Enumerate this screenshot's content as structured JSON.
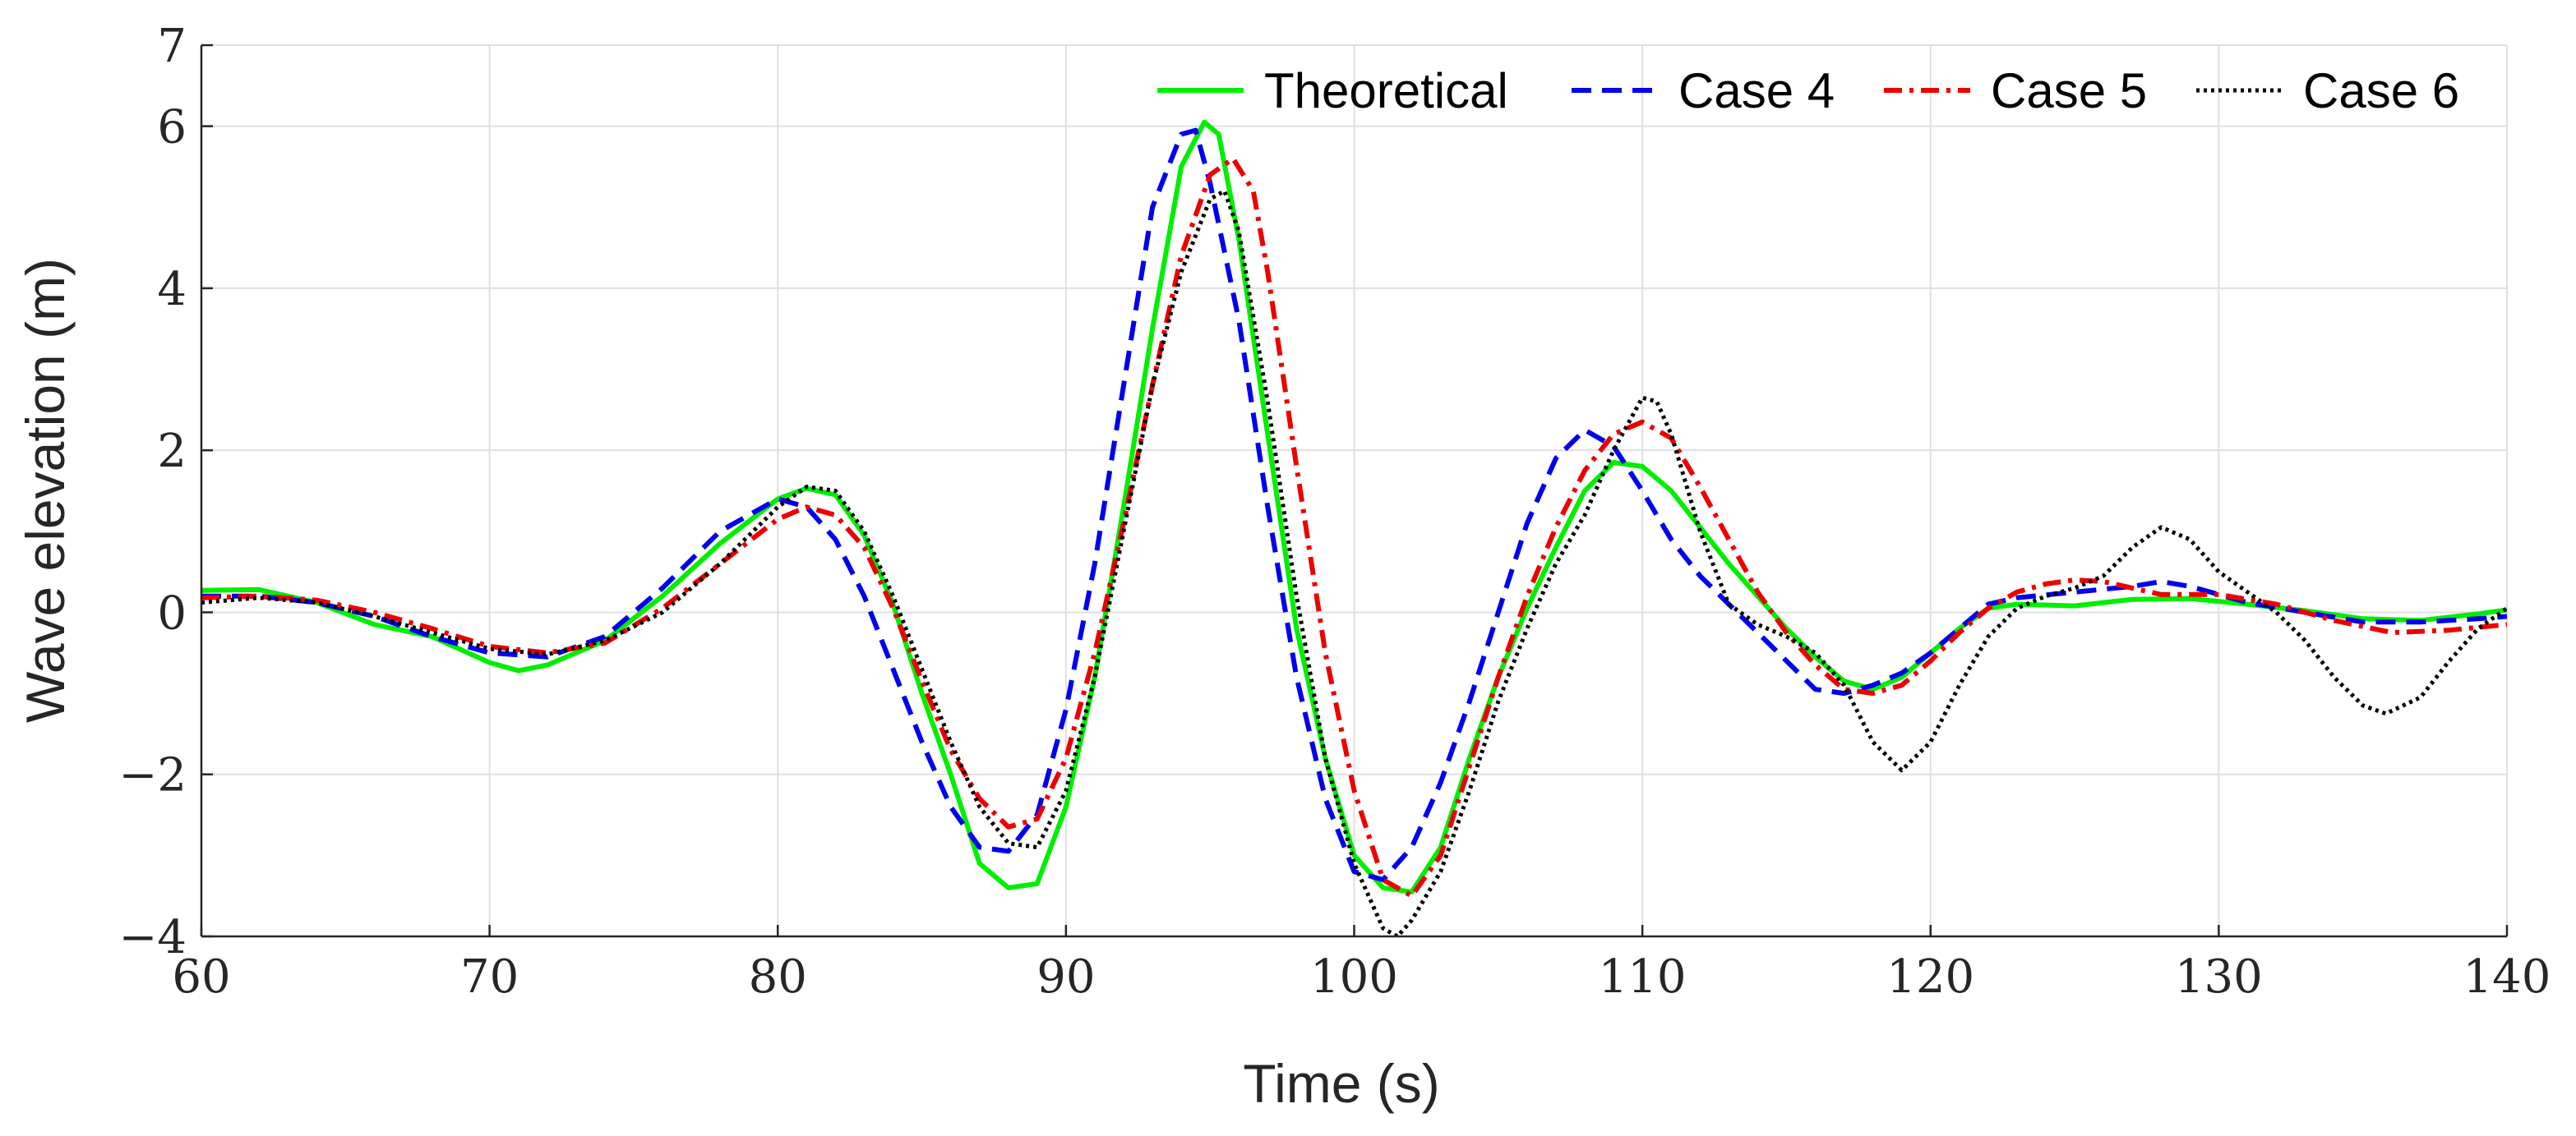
{
  "chart_data": {
    "type": "line",
    "title": "",
    "xlabel": "Time (s)",
    "ylabel": "Wave elevation (m)",
    "xlim": [
      60,
      140
    ],
    "ylim": [
      -4,
      7
    ],
    "xticks": [
      60,
      70,
      80,
      90,
      100,
      110,
      120,
      130,
      140
    ],
    "yticks": [
      -4,
      -2,
      0,
      2,
      4,
      6,
      7
    ],
    "xtick_labels": [
      "60",
      "70",
      "80",
      "90",
      "100",
      "110",
      "120",
      "130",
      "140"
    ],
    "ytick_labels": [
      "−4",
      "−2",
      "0",
      "2",
      "4",
      "6",
      "7"
    ],
    "grid": true,
    "legend_position": "top-right",
    "series": [
      {
        "name": "Theoretical",
        "color": "#00ee00",
        "style": "solid",
        "points": [
          [
            60,
            0.27
          ],
          [
            62,
            0.28
          ],
          [
            64,
            0.12
          ],
          [
            66,
            -0.15
          ],
          [
            68,
            -0.3
          ],
          [
            70,
            -0.62
          ],
          [
            71,
            -0.72
          ],
          [
            72,
            -0.65
          ],
          [
            74,
            -0.35
          ],
          [
            76,
            0.2
          ],
          [
            78,
            0.85
          ],
          [
            80,
            1.4
          ],
          [
            81,
            1.53
          ],
          [
            82,
            1.45
          ],
          [
            83,
            0.95
          ],
          [
            84,
            0.1
          ],
          [
            85,
            -1.0
          ],
          [
            86,
            -2.0
          ],
          [
            87,
            -3.1
          ],
          [
            88,
            -3.4
          ],
          [
            89,
            -3.35
          ],
          [
            90,
            -2.4
          ],
          [
            91,
            -0.8
          ],
          [
            92,
            1.3
          ],
          [
            93,
            3.5
          ],
          [
            94,
            5.5
          ],
          [
            94.8,
            6.05
          ],
          [
            95.3,
            5.9
          ],
          [
            96,
            4.6
          ],
          [
            97,
            2.2
          ],
          [
            98,
            -0.2
          ],
          [
            99,
            -1.8
          ],
          [
            100,
            -3.0
          ],
          [
            101,
            -3.4
          ],
          [
            102,
            -3.45
          ],
          [
            103,
            -2.9
          ],
          [
            104,
            -1.8
          ],
          [
            105,
            -0.8
          ],
          [
            106,
            0.05
          ],
          [
            107,
            0.8
          ],
          [
            108,
            1.5
          ],
          [
            109,
            1.85
          ],
          [
            110,
            1.8
          ],
          [
            111,
            1.5
          ],
          [
            112,
            1.05
          ],
          [
            113,
            0.6
          ],
          [
            114,
            0.2
          ],
          [
            115,
            -0.2
          ],
          [
            116,
            -0.55
          ],
          [
            117,
            -0.85
          ],
          [
            118,
            -0.95
          ],
          [
            119,
            -0.8
          ],
          [
            120,
            -0.5
          ],
          [
            121,
            -0.2
          ],
          [
            122,
            0.05
          ],
          [
            123,
            0.1
          ],
          [
            125,
            0.08
          ],
          [
            127,
            0.16
          ],
          [
            129,
            0.17
          ],
          [
            131,
            0.1
          ],
          [
            133,
            0.02
          ],
          [
            135,
            -0.08
          ],
          [
            137,
            -0.1
          ],
          [
            139,
            -0.02
          ],
          [
            140,
            0.03
          ]
        ]
      },
      {
        "name": "Case 4",
        "color": "#0000ee",
        "style": "dashed",
        "points": [
          [
            60,
            0.2
          ],
          [
            62,
            0.2
          ],
          [
            64,
            0.12
          ],
          [
            66,
            -0.05
          ],
          [
            68,
            -0.3
          ],
          [
            70,
            -0.5
          ],
          [
            72,
            -0.55
          ],
          [
            74,
            -0.3
          ],
          [
            76,
            0.3
          ],
          [
            78,
            1.0
          ],
          [
            80,
            1.4
          ],
          [
            81,
            1.3
          ],
          [
            82,
            0.9
          ],
          [
            83,
            0.2
          ],
          [
            84,
            -0.7
          ],
          [
            85,
            -1.6
          ],
          [
            86,
            -2.4
          ],
          [
            87,
            -2.9
          ],
          [
            88,
            -2.95
          ],
          [
            89,
            -2.5
          ],
          [
            90,
            -1.2
          ],
          [
            91,
            0.6
          ],
          [
            92,
            2.8
          ],
          [
            93,
            5.0
          ],
          [
            94,
            5.9
          ],
          [
            94.5,
            5.95
          ],
          [
            95,
            5.3
          ],
          [
            96,
            3.6
          ],
          [
            97,
            1.3
          ],
          [
            98,
            -0.8
          ],
          [
            99,
            -2.3
          ],
          [
            100,
            -3.2
          ],
          [
            101,
            -3.3
          ],
          [
            102,
            -2.9
          ],
          [
            103,
            -2.1
          ],
          [
            104,
            -1.1
          ],
          [
            105,
            0.0
          ],
          [
            106,
            1.1
          ],
          [
            107,
            1.9
          ],
          [
            108,
            2.25
          ],
          [
            109,
            2.05
          ],
          [
            110,
            1.5
          ],
          [
            111,
            0.9
          ],
          [
            112,
            0.45
          ],
          [
            113,
            0.1
          ],
          [
            114,
            -0.25
          ],
          [
            115,
            -0.6
          ],
          [
            116,
            -0.95
          ],
          [
            117,
            -1.0
          ],
          [
            118,
            -0.9
          ],
          [
            119,
            -0.75
          ],
          [
            120,
            -0.5
          ],
          [
            121,
            -0.2
          ],
          [
            122,
            0.1
          ],
          [
            123,
            0.18
          ],
          [
            125,
            0.25
          ],
          [
            127,
            0.32
          ],
          [
            128,
            0.38
          ],
          [
            129,
            0.32
          ],
          [
            131,
            0.12
          ],
          [
            133,
            0.0
          ],
          [
            135,
            -0.12
          ],
          [
            137,
            -0.12
          ],
          [
            139,
            -0.08
          ],
          [
            140,
            -0.05
          ]
        ]
      },
      {
        "name": "Case 5",
        "color": "#ee0000",
        "style": "dashdot",
        "points": [
          [
            60,
            0.18
          ],
          [
            62,
            0.2
          ],
          [
            64,
            0.15
          ],
          [
            66,
            0.0
          ],
          [
            68,
            -0.2
          ],
          [
            70,
            -0.42
          ],
          [
            72,
            -0.5
          ],
          [
            74,
            -0.38
          ],
          [
            76,
            0.05
          ],
          [
            78,
            0.6
          ],
          [
            80,
            1.15
          ],
          [
            81,
            1.3
          ],
          [
            82,
            1.2
          ],
          [
            83,
            0.8
          ],
          [
            84,
            0.05
          ],
          [
            85,
            -0.85
          ],
          [
            86,
            -1.7
          ],
          [
            87,
            -2.3
          ],
          [
            88,
            -2.65
          ],
          [
            89,
            -2.55
          ],
          [
            90,
            -1.8
          ],
          [
            91,
            -0.5
          ],
          [
            92,
            1.1
          ],
          [
            93,
            2.8
          ],
          [
            94,
            4.4
          ],
          [
            95,
            5.4
          ],
          [
            95.8,
            5.6
          ],
          [
            96.5,
            5.2
          ],
          [
            97,
            4.2
          ],
          [
            98,
            1.8
          ],
          [
            99,
            -0.5
          ],
          [
            100,
            -2.2
          ],
          [
            101,
            -3.3
          ],
          [
            102,
            -3.5
          ],
          [
            103,
            -3.0
          ],
          [
            104,
            -1.9
          ],
          [
            105,
            -0.8
          ],
          [
            106,
            0.2
          ],
          [
            107,
            1.05
          ],
          [
            108,
            1.75
          ],
          [
            109,
            2.2
          ],
          [
            110,
            2.35
          ],
          [
            111,
            2.15
          ],
          [
            112,
            1.55
          ],
          [
            113,
            0.9
          ],
          [
            114,
            0.25
          ],
          [
            115,
            -0.25
          ],
          [
            116,
            -0.65
          ],
          [
            117,
            -0.95
          ],
          [
            118,
            -1.0
          ],
          [
            119,
            -0.9
          ],
          [
            120,
            -0.6
          ],
          [
            121,
            -0.25
          ],
          [
            122,
            0.05
          ],
          [
            123,
            0.25
          ],
          [
            124,
            0.35
          ],
          [
            125,
            0.4
          ],
          [
            126,
            0.38
          ],
          [
            127,
            0.3
          ],
          [
            128,
            0.22
          ],
          [
            130,
            0.22
          ],
          [
            132,
            0.1
          ],
          [
            134,
            -0.1
          ],
          [
            136,
            -0.25
          ],
          [
            138,
            -0.22
          ],
          [
            140,
            -0.15
          ]
        ]
      },
      {
        "name": "Case 6",
        "color": "#000000",
        "style": "dotted",
        "points": [
          [
            60,
            0.12
          ],
          [
            62,
            0.18
          ],
          [
            64,
            0.12
          ],
          [
            66,
            -0.05
          ],
          [
            68,
            -0.25
          ],
          [
            70,
            -0.45
          ],
          [
            72,
            -0.52
          ],
          [
            74,
            -0.35
          ],
          [
            76,
            0.0
          ],
          [
            78,
            0.6
          ],
          [
            80,
            1.3
          ],
          [
            81,
            1.55
          ],
          [
            82,
            1.5
          ],
          [
            83,
            1.0
          ],
          [
            84,
            0.2
          ],
          [
            85,
            -0.7
          ],
          [
            86,
            -1.6
          ],
          [
            87,
            -2.4
          ],
          [
            88,
            -2.85
          ],
          [
            89,
            -2.9
          ],
          [
            90,
            -2.2
          ],
          [
            91,
            -0.8
          ],
          [
            92,
            1.0
          ],
          [
            93,
            2.8
          ],
          [
            94,
            4.2
          ],
          [
            95,
            5.1
          ],
          [
            95.5,
            5.2
          ],
          [
            96,
            4.7
          ],
          [
            97,
            2.6
          ],
          [
            98,
            0.2
          ],
          [
            99,
            -1.8
          ],
          [
            100,
            -3.1
          ],
          [
            101,
            -3.9
          ],
          [
            101.5,
            -4.0
          ],
          [
            102,
            -3.8
          ],
          [
            103,
            -3.2
          ],
          [
            104,
            -2.2
          ],
          [
            105,
            -1.1
          ],
          [
            106,
            -0.2
          ],
          [
            107,
            0.6
          ],
          [
            108,
            1.2
          ],
          [
            109,
            2.0
          ],
          [
            110,
            2.65
          ],
          [
            110.5,
            2.6
          ],
          [
            111,
            2.2
          ],
          [
            112,
            1.0
          ],
          [
            113,
            0.1
          ],
          [
            114,
            -0.15
          ],
          [
            115,
            -0.3
          ],
          [
            116,
            -0.5
          ],
          [
            117,
            -0.9
          ],
          [
            118,
            -1.6
          ],
          [
            119,
            -1.95
          ],
          [
            120,
            -1.6
          ],
          [
            121,
            -0.9
          ],
          [
            122,
            -0.3
          ],
          [
            123,
            0.05
          ],
          [
            124,
            0.2
          ],
          [
            125,
            0.3
          ],
          [
            126,
            0.45
          ],
          [
            127,
            0.8
          ],
          [
            128,
            1.05
          ],
          [
            129,
            0.9
          ],
          [
            130,
            0.5
          ],
          [
            131,
            0.25
          ],
          [
            132,
            0.0
          ],
          [
            133,
            -0.35
          ],
          [
            134,
            -0.8
          ],
          [
            135,
            -1.15
          ],
          [
            135.8,
            -1.25
          ],
          [
            137,
            -1.05
          ],
          [
            138,
            -0.6
          ],
          [
            139,
            -0.2
          ],
          [
            140,
            0.05
          ]
        ]
      }
    ]
  }
}
